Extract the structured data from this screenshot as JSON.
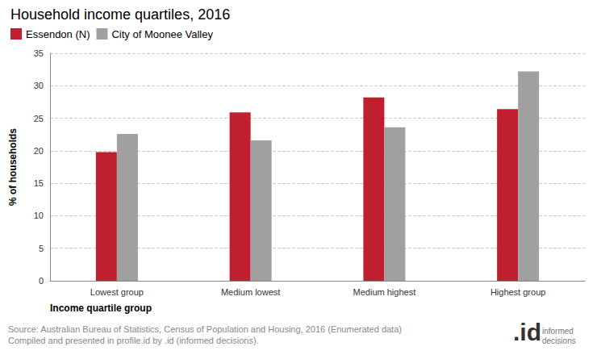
{
  "chart_data": {
    "type": "bar",
    "title": "Household income quartiles, 2016",
    "x_label": "Income quartile group",
    "y_label": "% of households",
    "categories": [
      "Lowest group",
      "Medium lowest",
      "Medium highest",
      "Highest group"
    ],
    "series": [
      {
        "name": "Essendon (N)",
        "color": "#c01f2f",
        "values": [
          19.8,
          25.9,
          28.2,
          26.4
        ]
      },
      {
        "name": "City of Moonee Valley",
        "color": "#a0a0a0",
        "values": [
          22.6,
          21.6,
          23.6,
          32.2
        ]
      }
    ],
    "ylim": [
      0,
      35
    ],
    "yticks": [
      0,
      5,
      10,
      15,
      20,
      25,
      30,
      35
    ],
    "grid": true,
    "legend": "top-left",
    "annotations": [
      "Source: Australian Bureau of Statistics, Census of Population and Housing, 2016 (Enumerated data)",
      "Compiled and presented in profile.id by .id (informed decisions).",
      ".id",
      "informed decisions"
    ]
  }
}
